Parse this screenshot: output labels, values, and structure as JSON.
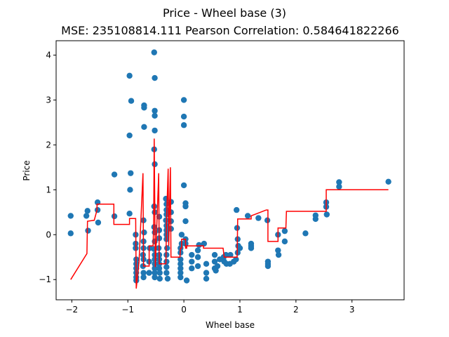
{
  "chart_data": {
    "type": "scatter",
    "title": "Price - Wheel base (3)",
    "subtitle": "MSE: 235108814.111 Pearson Correlation: 0.584641822266",
    "xlabel": "Wheel base",
    "ylabel": "Price",
    "xlim": [
      -2.28,
      3.93
    ],
    "ylim": [
      -1.45,
      4.32
    ],
    "xticks": [
      -2,
      -1,
      0,
      1,
      2,
      3
    ],
    "yticks": [
      -1,
      0,
      1,
      2,
      3,
      4
    ],
    "grid": false,
    "colors": {
      "points": "#1f77b4",
      "line": "#ff0000"
    },
    "series": [
      {
        "type": "scatter",
        "points": [
          [
            -2.02,
            0.42
          ],
          [
            -2.02,
            0.03
          ],
          [
            -1.72,
            0.53
          ],
          [
            -1.74,
            0.42
          ],
          [
            -1.71,
            0.09
          ],
          [
            -1.54,
            0.72
          ],
          [
            -1.54,
            0.55
          ],
          [
            -1.53,
            0.27
          ],
          [
            -1.24,
            1.34
          ],
          [
            -1.24,
            0.41
          ],
          [
            -0.97,
            3.54
          ],
          [
            -0.94,
            2.98
          ],
          [
            -0.97,
            2.21
          ],
          [
            -0.95,
            1.37
          ],
          [
            -0.96,
            1.0
          ],
          [
            -0.97,
            0.47
          ],
          [
            -0.85,
            -0.55
          ],
          [
            -0.85,
            -0.65
          ],
          [
            -0.85,
            -0.75
          ],
          [
            -0.85,
            -0.85
          ],
          [
            -0.85,
            -0.95
          ],
          [
            -0.85,
            -1.02
          ],
          [
            -0.86,
            0.0
          ],
          [
            -0.86,
            -0.2
          ],
          [
            -0.86,
            -0.3
          ],
          [
            -0.71,
            2.88
          ],
          [
            -0.71,
            2.83
          ],
          [
            -0.71,
            2.4
          ],
          [
            -0.72,
            0.32
          ],
          [
            -0.71,
            0.05
          ],
          [
            -0.72,
            -0.15
          ],
          [
            -0.72,
            -0.3
          ],
          [
            -0.73,
            -0.45
          ],
          [
            -0.72,
            -0.55
          ],
          [
            -0.73,
            -0.7
          ],
          [
            -0.72,
            -0.85
          ],
          [
            -0.72,
            -0.95
          ],
          [
            -0.62,
            -0.6
          ],
          [
            -0.62,
            -0.85
          ],
          [
            -0.61,
            -0.3
          ],
          [
            -0.53,
            4.06
          ],
          [
            -0.52,
            3.49
          ],
          [
            -0.52,
            2.76
          ],
          [
            -0.52,
            2.65
          ],
          [
            -0.52,
            2.32
          ],
          [
            -0.53,
            1.9
          ],
          [
            -0.52,
            1.57
          ],
          [
            -0.53,
            0.63
          ],
          [
            -0.52,
            0.5
          ],
          [
            -0.53,
            0.17
          ],
          [
            -0.52,
            0.05
          ],
          [
            -0.52,
            -0.15
          ],
          [
            -0.53,
            -0.32
          ],
          [
            -0.52,
            -0.45
          ],
          [
            -0.52,
            -0.55
          ],
          [
            -0.52,
            -0.65
          ],
          [
            -0.52,
            -0.75
          ],
          [
            -0.52,
            -0.85
          ],
          [
            -0.52,
            -0.95
          ],
          [
            -0.45,
            -0.3
          ],
          [
            -0.44,
            -0.45
          ],
          [
            -0.44,
            -0.55
          ],
          [
            -0.44,
            -0.65
          ],
          [
            -0.44,
            -0.75
          ],
          [
            -0.43,
            -0.85
          ],
          [
            -0.43,
            -0.98
          ],
          [
            -0.44,
            0.1
          ],
          [
            -0.44,
            -0.08
          ],
          [
            -0.44,
            0.4
          ],
          [
            -0.32,
            0.8
          ],
          [
            -0.31,
            0.68
          ],
          [
            -0.31,
            0.55
          ],
          [
            -0.31,
            0.45
          ],
          [
            -0.32,
            0.32
          ],
          [
            -0.31,
            0.2
          ],
          [
            -0.31,
            0.1
          ],
          [
            -0.31,
            0.0
          ],
          [
            -0.31,
            -0.1
          ],
          [
            -0.3,
            -0.3
          ],
          [
            -0.31,
            -0.45
          ],
          [
            -0.31,
            -0.6
          ],
          [
            -0.31,
            -0.72
          ],
          [
            -0.31,
            -0.85
          ],
          [
            -0.29,
            -0.98
          ],
          [
            -0.23,
            0.73
          ],
          [
            -0.23,
            0.5
          ],
          [
            -0.23,
            0.3
          ],
          [
            -0.23,
            0.13
          ],
          [
            -0.06,
            -0.3
          ],
          [
            -0.06,
            -0.4
          ],
          [
            -0.06,
            -0.55
          ],
          [
            -0.06,
            -0.65
          ],
          [
            -0.06,
            -0.75
          ],
          [
            -0.06,
            -0.85
          ],
          [
            -0.06,
            -0.95
          ],
          [
            0.0,
            3.0
          ],
          [
            0.0,
            2.63
          ],
          [
            0.0,
            2.44
          ],
          [
            0.0,
            1.1
          ],
          [
            0.03,
            0.7
          ],
          [
            0.03,
            0.63
          ],
          [
            0.03,
            0.3
          ],
          [
            0.03,
            -0.1
          ],
          [
            0.03,
            -0.2
          ],
          [
            0.05,
            -1.02
          ],
          [
            -0.04,
            -0.2
          ],
          [
            -0.04,
            0.0
          ],
          [
            0.14,
            -0.45
          ],
          [
            0.14,
            -0.6
          ],
          [
            0.14,
            -0.75
          ],
          [
            0.25,
            -0.35
          ],
          [
            0.25,
            -0.5
          ],
          [
            0.25,
            -0.7
          ],
          [
            0.27,
            -0.23
          ],
          [
            0.36,
            -0.2
          ],
          [
            0.4,
            -0.65
          ],
          [
            0.4,
            -0.85
          ],
          [
            0.4,
            -0.98
          ],
          [
            0.55,
            -0.45
          ],
          [
            0.55,
            -0.6
          ],
          [
            0.55,
            -0.75
          ],
          [
            0.57,
            -0.8
          ],
          [
            0.6,
            -0.7
          ],
          [
            0.64,
            -0.55
          ],
          [
            0.71,
            -0.5
          ],
          [
            0.72,
            -0.6
          ],
          [
            0.75,
            -0.45
          ],
          [
            0.76,
            -0.65
          ],
          [
            0.82,
            -0.65
          ],
          [
            0.83,
            -0.45
          ],
          [
            0.89,
            -0.6
          ],
          [
            0.93,
            -0.55
          ],
          [
            0.94,
            0.55
          ],
          [
            0.95,
            0.15
          ],
          [
            0.96,
            -0.1
          ],
          [
            0.97,
            -0.25
          ],
          [
            0.96,
            -0.4
          ],
          [
            1.0,
            -0.3
          ],
          [
            1.2,
            -0.2
          ],
          [
            1.2,
            -0.25
          ],
          [
            1.2,
            -0.3
          ],
          [
            1.14,
            0.42
          ],
          [
            1.33,
            0.37
          ],
          [
            1.49,
            0.32
          ],
          [
            1.5,
            -0.6
          ],
          [
            1.5,
            -0.65
          ],
          [
            1.5,
            -0.7
          ],
          [
            1.68,
            0.0
          ],
          [
            1.68,
            -0.35
          ],
          [
            1.69,
            -0.45
          ],
          [
            1.8,
            0.08
          ],
          [
            1.8,
            -0.15
          ],
          [
            2.17,
            0.03
          ],
          [
            2.35,
            0.43
          ],
          [
            2.35,
            0.35
          ],
          [
            2.54,
            0.72
          ],
          [
            2.54,
            0.62
          ],
          [
            2.55,
            0.45
          ],
          [
            2.77,
            1.17
          ],
          [
            2.77,
            1.07
          ],
          [
            3.65,
            1.18
          ]
        ]
      },
      {
        "type": "line",
        "points": [
          [
            -2.02,
            -1.0
          ],
          [
            -1.73,
            -0.42
          ],
          [
            -1.72,
            0.3
          ],
          [
            -1.6,
            0.32
          ],
          [
            -1.55,
            0.55
          ],
          [
            -1.55,
            0.68
          ],
          [
            -1.25,
            0.68
          ],
          [
            -1.25,
            0.23
          ],
          [
            -0.97,
            0.23
          ],
          [
            -0.97,
            0.36
          ],
          [
            -0.86,
            0.36
          ],
          [
            -0.85,
            -1.2
          ],
          [
            -0.8,
            -0.6
          ],
          [
            -0.73,
            1.37
          ],
          [
            -0.72,
            -0.7
          ],
          [
            -0.62,
            -0.7
          ],
          [
            -0.62,
            -0.25
          ],
          [
            -0.55,
            -0.25
          ],
          [
            -0.54,
            0.22
          ],
          [
            -0.53,
            2.14
          ],
          [
            -0.51,
            -0.72
          ],
          [
            -0.45,
            1.37
          ],
          [
            -0.44,
            -0.65
          ],
          [
            -0.32,
            -0.65
          ],
          [
            -0.31,
            0.3
          ],
          [
            -0.28,
            1.47
          ],
          [
            -0.27,
            -0.25
          ],
          [
            -0.24,
            1.5
          ],
          [
            -0.23,
            -0.5
          ],
          [
            -0.07,
            -0.5
          ],
          [
            -0.06,
            -0.3
          ],
          [
            -0.04,
            -0.3
          ],
          [
            -0.04,
            -0.1
          ],
          [
            0.03,
            -0.1
          ],
          [
            0.03,
            -0.3
          ],
          [
            0.05,
            -0.3
          ],
          [
            0.05,
            -0.25
          ],
          [
            0.35,
            -0.25
          ],
          [
            0.35,
            -0.3
          ],
          [
            0.7,
            -0.3
          ],
          [
            0.72,
            -0.5
          ],
          [
            0.95,
            -0.5
          ],
          [
            0.96,
            0.35
          ],
          [
            1.2,
            0.35
          ],
          [
            1.2,
            0.42
          ],
          [
            1.47,
            0.55
          ],
          [
            1.5,
            0.55
          ],
          [
            1.5,
            -0.15
          ],
          [
            1.68,
            -0.15
          ],
          [
            1.68,
            0.15
          ],
          [
            1.82,
            0.15
          ],
          [
            1.83,
            0.52
          ],
          [
            2.54,
            0.52
          ],
          [
            2.54,
            1.0
          ],
          [
            3.65,
            1.0
          ]
        ]
      }
    ]
  }
}
